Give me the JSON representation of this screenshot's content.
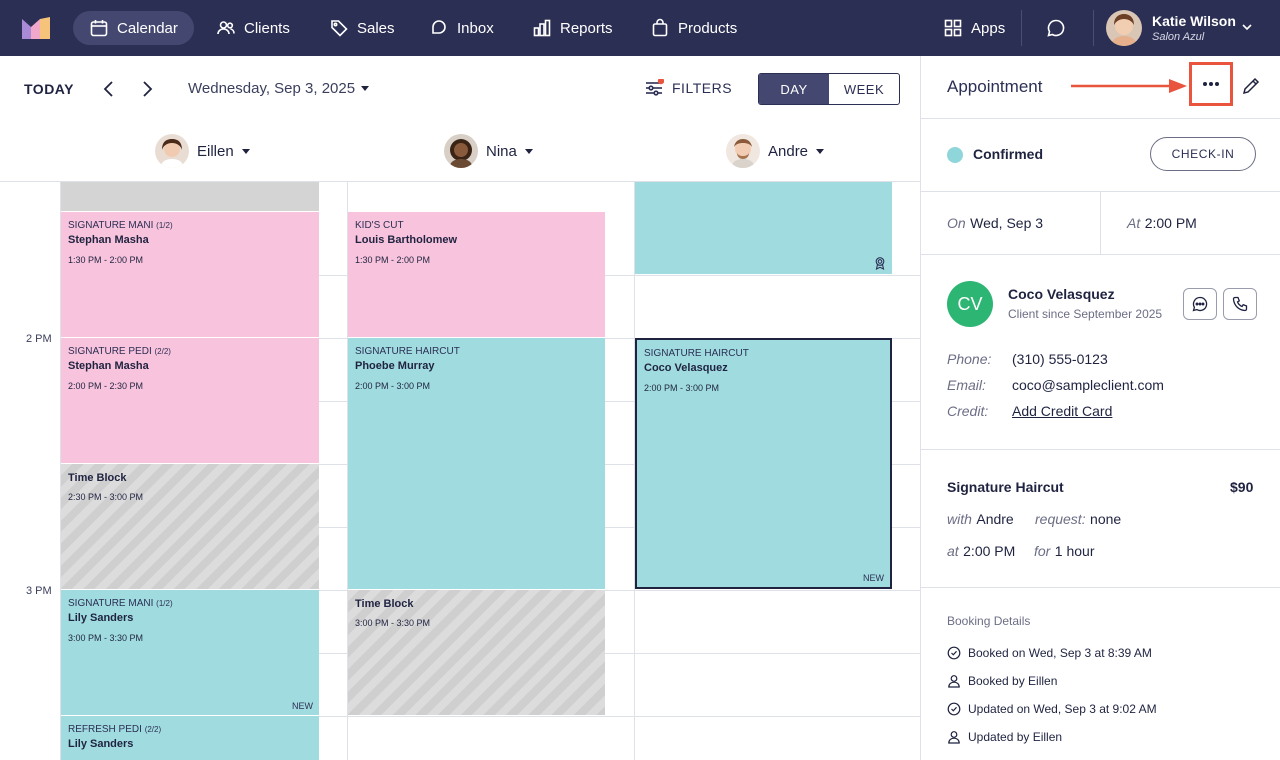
{
  "nav": {
    "items": [
      {
        "label": "Calendar",
        "icon": "calendar-icon"
      },
      {
        "label": "Clients",
        "icon": "users-icon"
      },
      {
        "label": "Sales",
        "icon": "tag-icon"
      },
      {
        "label": "Inbox",
        "icon": "chat-icon"
      },
      {
        "label": "Reports",
        "icon": "bar-chart-icon"
      },
      {
        "label": "Products",
        "icon": "bag-icon"
      }
    ],
    "apps_label": "Apps",
    "user_name": "Katie Wilson",
    "user_salon": "Salon Azul"
  },
  "toolbar": {
    "today_label": "TODAY",
    "date": "Wednesday, Sep 3, 2025",
    "filters_label": "FILTERS",
    "view_day": "DAY",
    "view_week": "WEEK"
  },
  "staff": [
    {
      "name": "Eillen"
    },
    {
      "name": "Nina"
    },
    {
      "name": "Andre"
    }
  ],
  "time_labels": [
    "2 PM",
    "3 PM"
  ],
  "appointments": {
    "e1": {
      "service": "SIGNATURE MANI",
      "part": "(1/2)",
      "client": "Stephan Masha",
      "time": "1:30 PM - 2:00 PM"
    },
    "e2": {
      "service": "SIGNATURE PEDI",
      "part": "(2/2)",
      "client": "Stephan Masha",
      "time": "2:00 PM - 2:30 PM"
    },
    "e3": {
      "title": "Time Block",
      "time": "2:30 PM - 3:00 PM"
    },
    "e4": {
      "service": "SIGNATURE MANI",
      "part": "(1/2)",
      "client": "Lily Sanders",
      "time": "3:00 PM - 3:30 PM",
      "badge": "NEW"
    },
    "e5": {
      "service": "REFRESH PEDI",
      "part": "(2/2)",
      "client": "Lily Sanders"
    },
    "n1": {
      "service": "KID'S CUT",
      "client": "Louis Bartholomew",
      "time": "1:30 PM - 2:00 PM"
    },
    "n2": {
      "service": "SIGNATURE HAIRCUT",
      "client": "Phoebe Murray",
      "time": "2:00 PM - 3:00 PM"
    },
    "n3": {
      "title": "Time Block",
      "time": "3:00 PM - 3:30 PM"
    },
    "a2": {
      "service": "SIGNATURE HAIRCUT",
      "client": "Coco Velasquez",
      "time": "2:00 PM - 3:00 PM",
      "badge": "NEW"
    }
  },
  "panel": {
    "title": "Appointment",
    "status": "Confirmed",
    "checkin_label": "CHECK-IN",
    "on_label": "On",
    "on_value": "Wed, Sep 3",
    "at_label": "At",
    "at_value": "2:00 PM",
    "client_initials": "CV",
    "client_name": "Coco Velasquez",
    "client_since": "Client since September 2025",
    "phone_label": "Phone:",
    "phone_value": "(310) 555-0123",
    "email_label": "Email:",
    "email_value": "coco@sampleclient.com",
    "credit_label": "Credit:",
    "credit_value": "Add Credit Card",
    "service_name": "Signature Haircut",
    "service_price": "$90",
    "with_label": "with",
    "with_value": "Andre",
    "request_label": "request:",
    "request_value": "none",
    "svc_at_label": "at",
    "svc_at_value": "2:00 PM",
    "for_label": "for",
    "for_value": "1 hour",
    "booking_title": "Booking Details",
    "booking": [
      "Booked on Wed, Sep 3 at 8:39 AM",
      "Booked by Eillen",
      "Updated on Wed, Sep 3 at 9:02 AM",
      "Updated by Eillen"
    ]
  },
  "colors": {
    "nav_bg": "#2c2f54",
    "pink": "#f8c3dc",
    "teal": "#a0dcdf",
    "highlight": "#e8543d",
    "client_avatar": "#2db673"
  }
}
